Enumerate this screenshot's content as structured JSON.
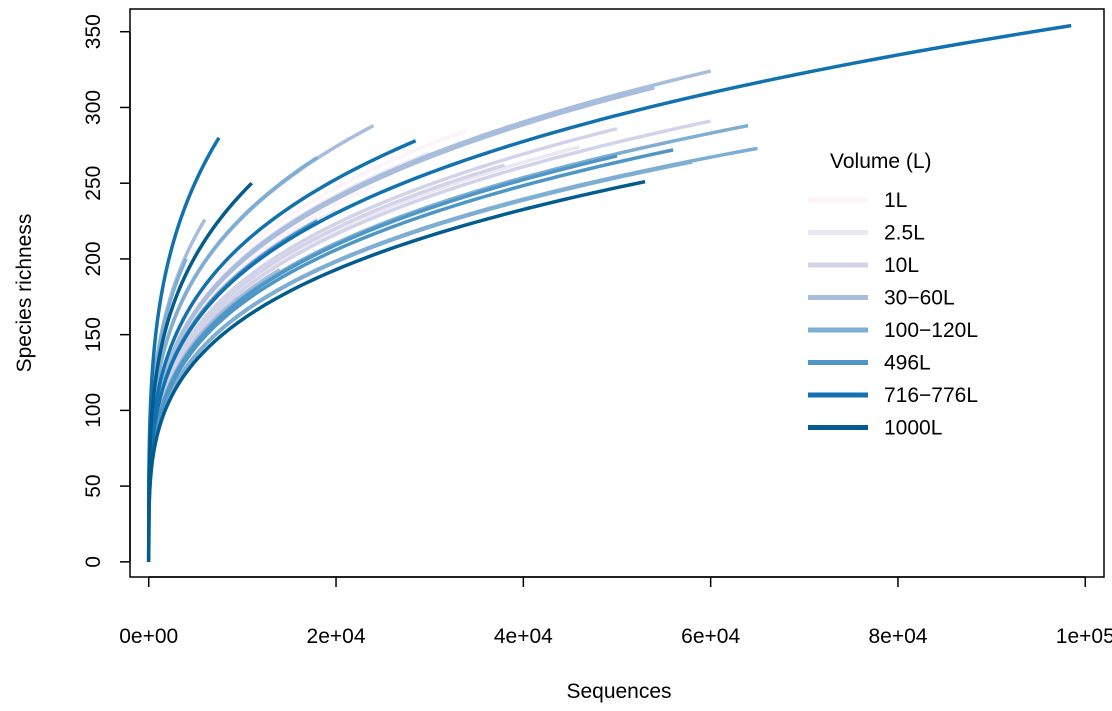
{
  "chart_data": {
    "type": "line",
    "title": "",
    "xlabel": "Sequences",
    "ylabel": "Species richness",
    "xlim": [
      -2000,
      102000
    ],
    "ylim": [
      -10,
      365
    ],
    "x_ticks": [
      0,
      20000,
      40000,
      60000,
      80000,
      100000
    ],
    "x_tick_labels": [
      "0e+00",
      "2e+04",
      "4e+04",
      "6e+04",
      "8e+04",
      "1e+05"
    ],
    "y_ticks": [
      0,
      50,
      100,
      150,
      200,
      250,
      300,
      350
    ],
    "y_tick_labels": [
      "0",
      "50",
      "100",
      "150",
      "200",
      "250",
      "300",
      "350"
    ],
    "grid": false,
    "legend": {
      "title": "Volume (L)",
      "position": "right",
      "entries": [
        {
          "label": "1L",
          "color": "#fdf4f9"
        },
        {
          "label": "2.5L",
          "color": "#ece8f3"
        },
        {
          "label": "10L",
          "color": "#d2d3e8"
        },
        {
          "label": "30-60L",
          "color": "#a7bddb"
        },
        {
          "label": "100-120L",
          "color": "#7eaed2"
        },
        {
          "label": "496L",
          "color": "#4d96c5"
        },
        {
          "label": "716-776L",
          "color": "#1272b0"
        },
        {
          "label": "1000L",
          "color": "#045c8e"
        }
      ]
    },
    "series": [
      {
        "group": "1L",
        "end_x": 34000,
        "end_y": 285
      },
      {
        "group": "1L",
        "end_x": 24000,
        "end_y": 248
      },
      {
        "group": "1L",
        "end_x": 12000,
        "end_y": 215
      },
      {
        "group": "2.5L",
        "end_x": 30000,
        "end_y": 270
      },
      {
        "group": "2.5L",
        "end_x": 20000,
        "end_y": 232
      },
      {
        "group": "2.5L",
        "end_x": 46000,
        "end_y": 274
      },
      {
        "group": "10L",
        "end_x": 50000,
        "end_y": 286
      },
      {
        "group": "10L",
        "end_x": 60000,
        "end_y": 291
      },
      {
        "group": "10L",
        "end_x": 38000,
        "end_y": 262
      },
      {
        "group": "10L",
        "end_x": 18000,
        "end_y": 226
      },
      {
        "group": "10L",
        "end_x": 26000,
        "end_y": 247
      },
      {
        "group": "30-60L",
        "end_x": 60000,
        "end_y": 324
      },
      {
        "group": "30-60L",
        "end_x": 54000,
        "end_y": 313
      },
      {
        "group": "30-60L",
        "end_x": 24000,
        "end_y": 288
      },
      {
        "group": "30-60L",
        "end_x": 16000,
        "end_y": 258
      },
      {
        "group": "30-60L",
        "end_x": 6000,
        "end_y": 226
      },
      {
        "group": "30-60L",
        "end_x": 14000,
        "end_y": 193
      },
      {
        "group": "100-120L",
        "end_x": 64000,
        "end_y": 288
      },
      {
        "group": "100-120L",
        "end_x": 65000,
        "end_y": 273
      },
      {
        "group": "100-120L",
        "end_x": 58000,
        "end_y": 264
      },
      {
        "group": "100-120L",
        "end_x": 18000,
        "end_y": 267
      },
      {
        "group": "100-120L",
        "end_x": 4000,
        "end_y": 200
      },
      {
        "group": "496L",
        "end_x": 56000,
        "end_y": 272
      },
      {
        "group": "496L",
        "end_x": 50000,
        "end_y": 268
      },
      {
        "group": "496L",
        "end_x": 18000,
        "end_y": 225
      },
      {
        "group": "716-776L",
        "end_x": 98500,
        "end_y": 354
      },
      {
        "group": "716-776L",
        "end_x": 28500,
        "end_y": 278
      },
      {
        "group": "716-776L",
        "end_x": 7500,
        "end_y": 280
      },
      {
        "group": "1000L",
        "end_x": 53000,
        "end_y": 251
      },
      {
        "group": "1000L",
        "end_x": 11000,
        "end_y": 250
      }
    ]
  }
}
